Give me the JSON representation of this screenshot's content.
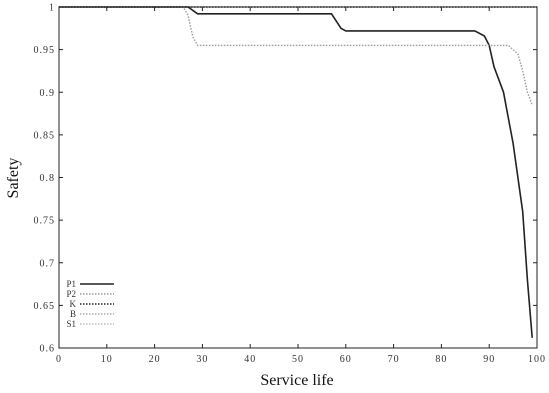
{
  "chart_data": {
    "type": "line",
    "title": "",
    "xlabel": "Service life",
    "ylabel": "Safety",
    "xlim": [
      0,
      100
    ],
    "ylim": [
      0.6,
      1.0
    ],
    "x_ticks": [
      0,
      10,
      20,
      30,
      40,
      50,
      60,
      70,
      80,
      90,
      100
    ],
    "x_tick_labels": [
      "0",
      "10",
      "20",
      "30",
      "40",
      "50",
      "60",
      "70",
      "80",
      "90",
      "100"
    ],
    "y_ticks": [
      0.6,
      0.65,
      0.7,
      0.75,
      0.8,
      0.85,
      0.9,
      0.95,
      1.0
    ],
    "y_tick_labels": [
      "0.6",
      "0.65",
      "0.7",
      "0.75",
      "0.8",
      "0.85",
      "0.9",
      "0.95",
      "1"
    ],
    "grid": false,
    "legend_position": "lower-left",
    "series": [
      {
        "name": "P1",
        "style": "solid",
        "color": "#222222",
        "points": [
          [
            0,
            1.0
          ],
          [
            27,
            1.0
          ],
          [
            29,
            0.992
          ],
          [
            40,
            0.992
          ],
          [
            57,
            0.992
          ],
          [
            59,
            0.975
          ],
          [
            60,
            0.972
          ],
          [
            80,
            0.972
          ],
          [
            87,
            0.972
          ],
          [
            89,
            0.966
          ],
          [
            90,
            0.955
          ],
          [
            91,
            0.93
          ],
          [
            93,
            0.9
          ],
          [
            95,
            0.84
          ],
          [
            97,
            0.76
          ],
          [
            98,
            0.68
          ],
          [
            99,
            0.612
          ]
        ]
      },
      {
        "name": "P2",
        "style": "dotted",
        "color": "#999999",
        "points": [
          [
            0,
            1.0
          ],
          [
            26,
            1.0
          ],
          [
            27,
            0.99
          ],
          [
            28,
            0.965
          ],
          [
            29,
            0.955
          ],
          [
            60,
            0.955
          ],
          [
            90,
            0.955
          ],
          [
            94,
            0.955
          ],
          [
            96,
            0.945
          ],
          [
            97,
            0.925
          ],
          [
            98,
            0.9
          ],
          [
            99,
            0.885
          ]
        ]
      },
      {
        "name": "K",
        "style": "dotted",
        "color": "#222222",
        "points": [
          [
            0,
            1.0
          ],
          [
            100,
            1.0
          ]
        ]
      },
      {
        "name": "B",
        "style": "dotted",
        "color": "#aaaaaa",
        "points": []
      },
      {
        "name": "S1",
        "style": "dotted",
        "color": "#bbbbbb",
        "points": []
      }
    ]
  }
}
